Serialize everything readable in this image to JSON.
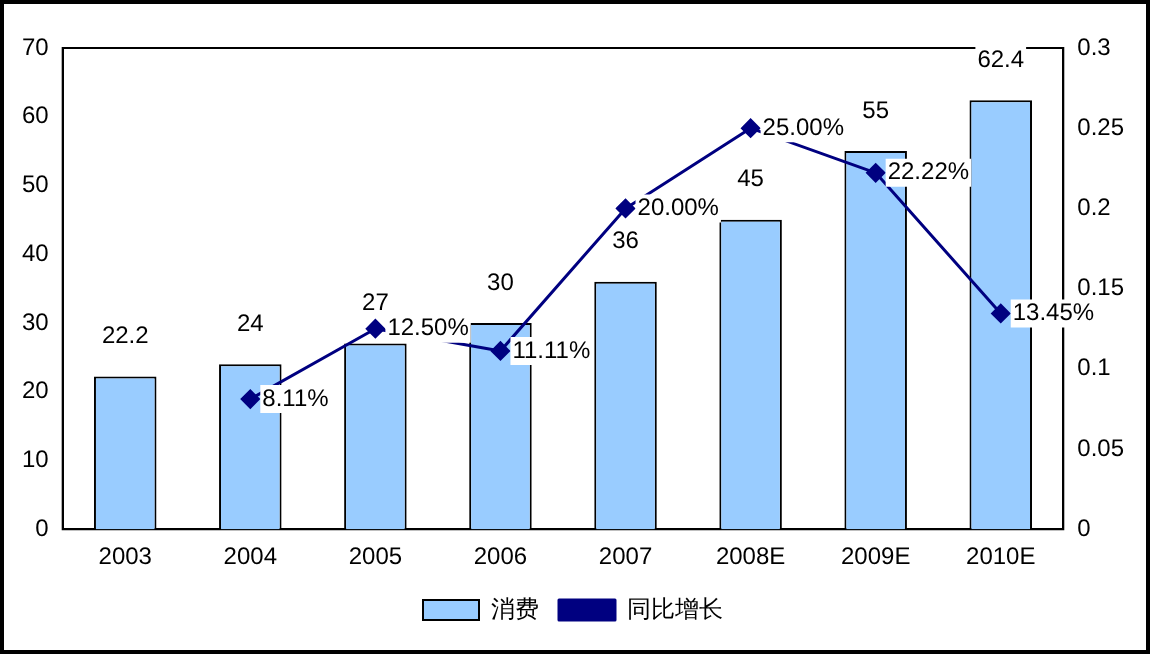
{
  "chart_data": {
    "type": "bar",
    "categories": [
      "2003",
      "2004",
      "2005",
      "2006",
      "2007",
      "2008E",
      "2009E",
      "2010E"
    ],
    "series": [
      {
        "name": "消费",
        "color": "#99ccff",
        "values": [
          22.2,
          24,
          27,
          30,
          36,
          45,
          55,
          62.4
        ],
        "value_labels": [
          "22.2",
          "24",
          "27",
          "30",
          "36",
          "45",
          "55",
          "62.4"
        ]
      },
      {
        "name": "同比增长",
        "type": "line",
        "axis": "y2",
        "color": "#000080",
        "marker": "diamond",
        "values": [
          null,
          0.0811,
          0.125,
          0.1111,
          0.2,
          0.25,
          0.2222,
          0.1345
        ],
        "value_labels": [
          null,
          "8.11%",
          "12.50%",
          "11.11%",
          "20.00%",
          "25.00%",
          "22.22%",
          "13.45%"
        ]
      }
    ],
    "ylim": [
      0,
      70
    ],
    "yticks": [
      0,
      10,
      20,
      30,
      40,
      50,
      60,
      70
    ],
    "y2lim": [
      0,
      0.3
    ],
    "y2ticks": [
      0,
      0.05,
      0.1,
      0.15,
      0.2,
      0.25,
      0.3
    ],
    "legend": "bottom"
  }
}
